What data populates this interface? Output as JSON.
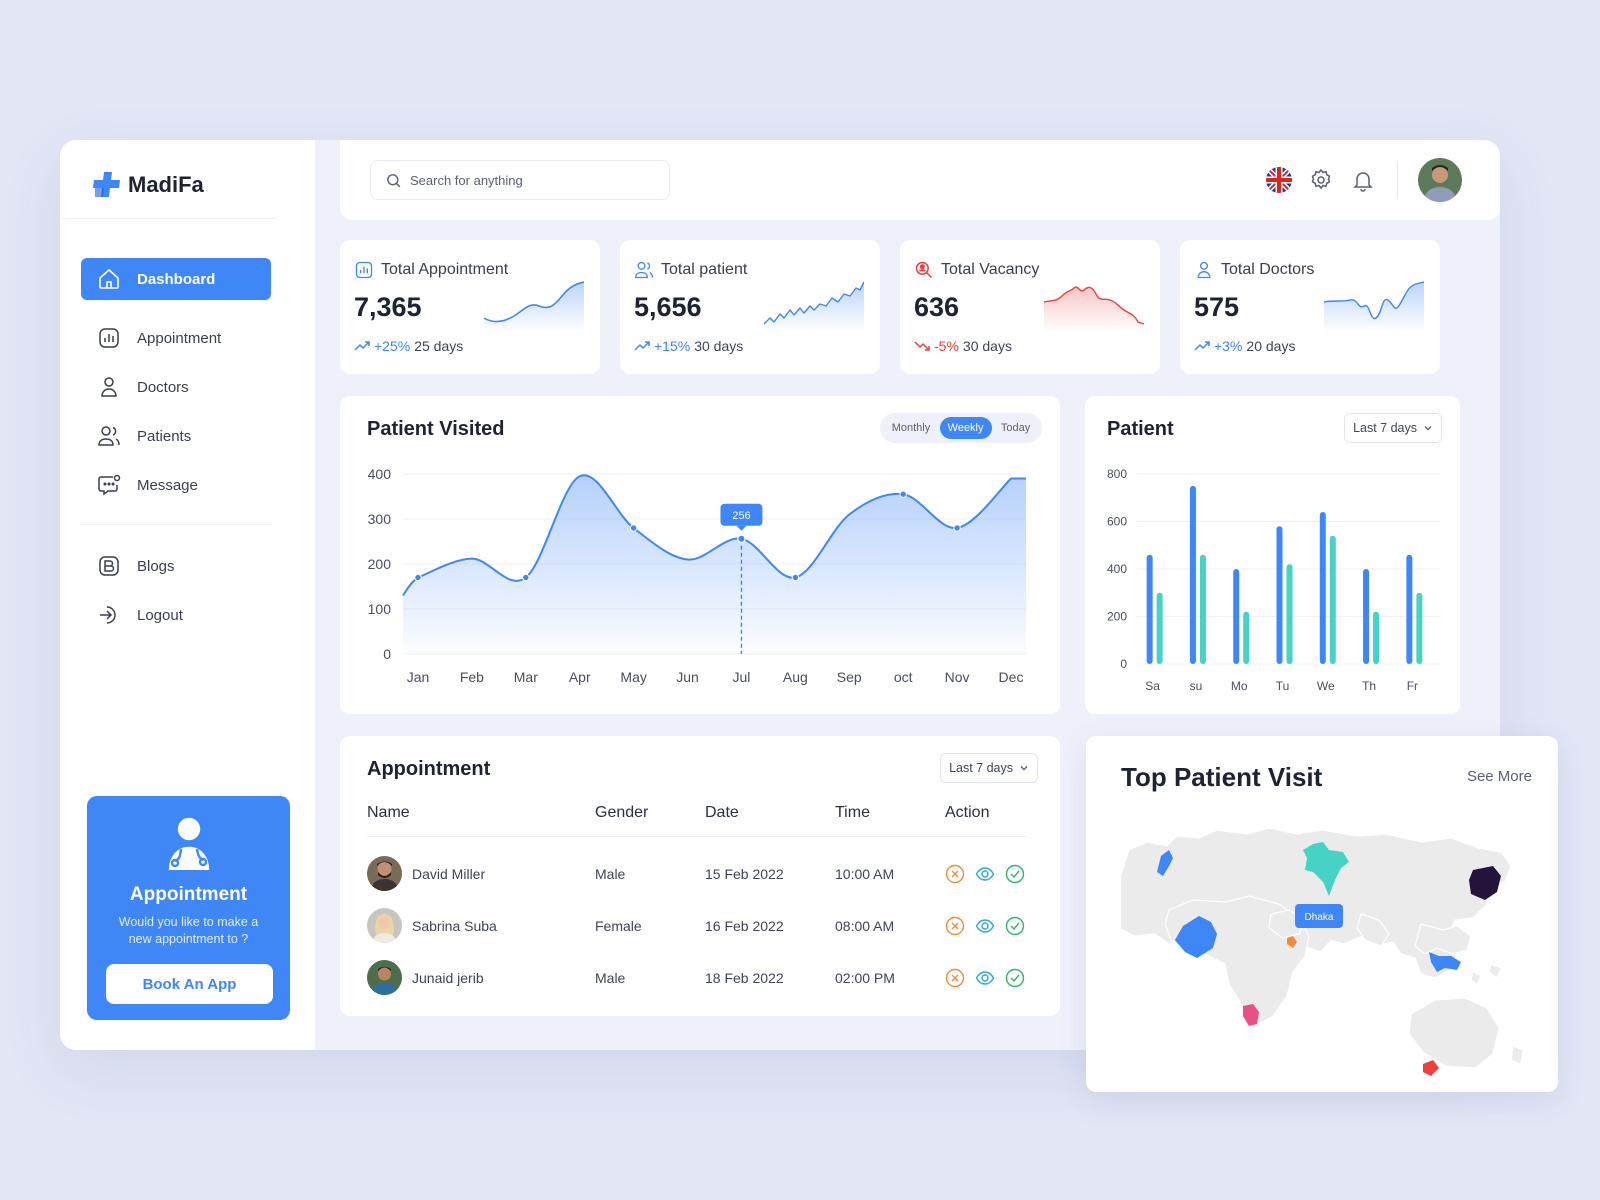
{
  "brand": {
    "name": "MadiFa",
    "accent": "#3f86f7"
  },
  "sidebar": {
    "items": [
      {
        "label": "Dashboard",
        "icon": "home-icon",
        "active": true
      },
      {
        "label": "Appointment",
        "icon": "chart-box-icon"
      },
      {
        "label": "Doctors",
        "icon": "user-icon"
      },
      {
        "label": "Patients",
        "icon": "users-icon"
      },
      {
        "label": "Message",
        "icon": "message-icon"
      },
      {
        "label": "Blogs",
        "icon": "blog-icon"
      },
      {
        "label": "Logout",
        "icon": "logout-icon"
      }
    ],
    "promo": {
      "title": "Appointment",
      "text": "Would you like to make a new appointment to ?",
      "button": "Book An App"
    }
  },
  "topbar": {
    "search_placeholder": "Search for anything",
    "icons": [
      "uk-flag-icon",
      "gear-icon",
      "bell-icon",
      "avatar"
    ]
  },
  "stats": [
    {
      "label": "Total Appointment",
      "value": "7,365",
      "change": "+25%",
      "period": "25 days",
      "trend": "up",
      "color": "#3f86f7"
    },
    {
      "label": "Total patient",
      "value": "5,656",
      "change": "+15%",
      "period": "30 days",
      "trend": "up",
      "color": "#3f86f7"
    },
    {
      "label": "Total Vacancy",
      "value": "636",
      "change": "-5%",
      "period": "30 days",
      "trend": "down",
      "color": "#ee3e3e"
    },
    {
      "label": "Total Doctors",
      "value": "575",
      "change": "+3%",
      "period": "20 days",
      "trend": "up",
      "color": "#3f86f7"
    }
  ],
  "patient_visited": {
    "title": "Patient Visited",
    "tabs": [
      {
        "label": "Monthly"
      },
      {
        "label": "Weekly",
        "active": true
      },
      {
        "label": "Today"
      }
    ],
    "tooltip": "256"
  },
  "patient_bar": {
    "title": "Patient",
    "range": "Last 7 days"
  },
  "appointment": {
    "title": "Appointment",
    "range": "Last 7 days",
    "columns": [
      "Name",
      "Gender",
      "Date",
      "Time",
      "Action"
    ],
    "rows": [
      {
        "name": "David Miller",
        "gender": "Male",
        "date": "15 Feb 2022",
        "time": "10:00 AM"
      },
      {
        "name": "Sabrina Suba",
        "gender": "Female",
        "date": "16 Feb 2022",
        "time": "08:00 AM"
      },
      {
        "name": "Junaid jerib",
        "gender": "Male",
        "date": "18 Feb 2022",
        "time": "02:00 PM"
      }
    ]
  },
  "top_patient_visit": {
    "title": "Top Patient Visit",
    "see_more": "See More",
    "marker": "Dhaka"
  },
  "chart_data": [
    {
      "type": "area",
      "title": "Patient Visited",
      "categories": [
        "Jan",
        "Feb",
        "Mar",
        "Apr",
        "May",
        "Jun",
        "Jul",
        "Aug",
        "Sep",
        "oct",
        "Nov",
        "Dec"
      ],
      "values": [
        170,
        212,
        170,
        395,
        280,
        210,
        256,
        170,
        310,
        355,
        280,
        390
      ],
      "yticks": [
        0,
        100,
        200,
        300,
        400
      ],
      "ylim": [
        0,
        400
      ],
      "highlight": {
        "category": "Jul",
        "value": 256
      },
      "color": "#3f86f7"
    },
    {
      "type": "bar",
      "title": "Patient",
      "categories": [
        "Sa",
        "su",
        "Mo",
        "Tu",
        "We",
        "Th",
        "Fr"
      ],
      "series": [
        {
          "values": [
            460,
            750,
            400,
            580,
            640,
            400,
            460
          ],
          "color": "#3f86f7"
        },
        {
          "values": [
            300,
            460,
            220,
            420,
            540,
            220,
            300
          ],
          "color": "#46d3c6"
        }
      ],
      "yticks": [
        0,
        200,
        400,
        600,
        800
      ],
      "ylim": [
        0,
        800
      ]
    }
  ]
}
